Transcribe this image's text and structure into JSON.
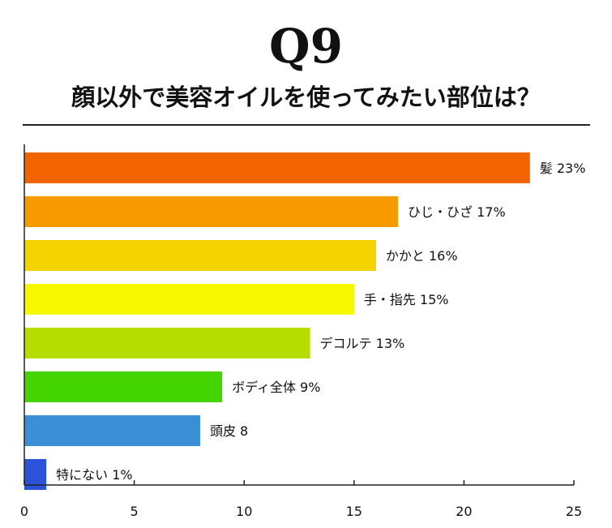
{
  "header": {
    "question_number": "Q9",
    "question_text": "顔以外で美容オイルを使ってみたい部位は？"
  },
  "chart_data": {
    "type": "bar",
    "orientation": "horizontal",
    "title": "顔以外で美容オイルを使ってみたい部位は？",
    "xlabel": "",
    "ylabel": "",
    "xlim": [
      0,
      25
    ],
    "x_ticks": [
      0,
      5,
      10,
      15,
      20,
      25
    ],
    "grid": false,
    "categories": [
      "髪",
      "ひじ・ひざ",
      "かかと",
      "手・指先",
      "デコルテ",
      "ボディ全体",
      "頭皮",
      "特にない"
    ],
    "values": [
      23,
      17,
      16,
      15,
      13,
      9,
      8,
      1
    ],
    "data_labels": [
      "髪 23%",
      "ひじ・ひざ 17%",
      "かかと 16%",
      "手・指先 15%",
      "デコルテ 13%",
      "ボディ全体 9%",
      "頭皮 8",
      "特にない 1%"
    ],
    "colors": [
      "#f26400",
      "#f69a00",
      "#f5d300",
      "#f7f700",
      "#b5de00",
      "#44d400",
      "#3a8fd6",
      "#2b52d8"
    ]
  }
}
